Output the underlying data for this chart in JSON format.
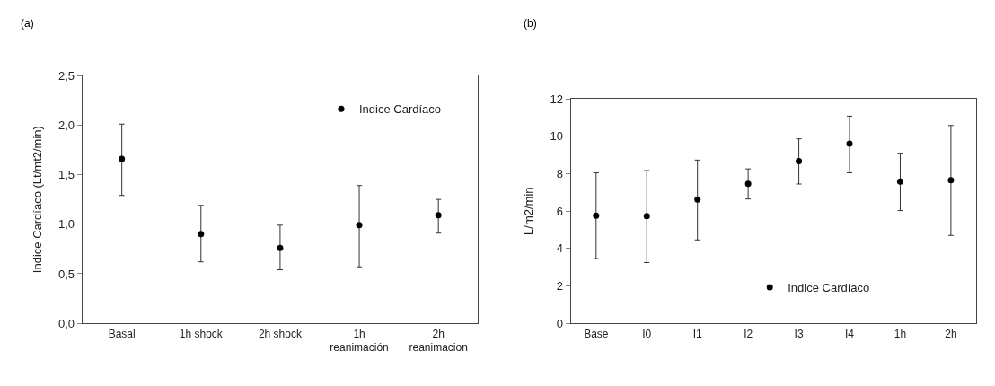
{
  "chart_data": [
    {
      "type": "scatter",
      "title": "(a)",
      "ylabel": "Indice Cardíaco (Lt/mt2/min)",
      "categories": [
        "Basal",
        "1h shock",
        "2h shock",
        "1h\nreanimación",
        "2h\nreanimacion"
      ],
      "series": [
        {
          "name": "Indice Cardíaco",
          "color": "#000000",
          "values": [
            1.66,
            0.9,
            0.76,
            0.99,
            1.09
          ],
          "errors": [
            [
              1.29,
              2.01
            ],
            [
              0.62,
              1.19
            ],
            [
              0.54,
              0.99
            ],
            [
              0.57,
              1.39
            ],
            [
              0.91,
              1.25
            ]
          ]
        }
      ],
      "ylim": [
        0,
        2.5
      ],
      "yticks": [
        {
          "value": 0,
          "label": "0,0"
        },
        {
          "value": 0.5,
          "label": "0,5"
        },
        {
          "value": 1,
          "label": "1,0"
        },
        {
          "value": 1.5,
          "label": "1,5"
        },
        {
          "value": 2,
          "label": "2,0"
        },
        {
          "value": 2.5,
          "label": "2,5"
        }
      ],
      "legend": "top right",
      "marker": "circle"
    },
    {
      "type": "scatter",
      "title": "(b)",
      "ylabel": "L/m2/min",
      "categories": [
        "Base",
        "I0",
        "I1",
        "I2",
        "I3",
        "I4",
        "1h",
        "2h"
      ],
      "series": [
        {
          "name": "Indice Cardíaco",
          "color": "#000000",
          "values": [
            5.76,
            5.73,
            6.62,
            7.46,
            8.67,
            9.61,
            7.58,
            7.65
          ],
          "errors": [
            [
              3.46,
              8.05
            ],
            [
              3.25,
              8.17
            ],
            [
              4.46,
              8.73
            ],
            [
              6.65,
              8.26
            ],
            [
              7.45,
              9.87
            ],
            [
              8.05,
              11.08
            ],
            [
              6.03,
              9.1
            ],
            [
              4.7,
              10.58
            ]
          ]
        }
      ],
      "ylim": [
        0,
        12
      ],
      "yticks": [
        0,
        2,
        4,
        6,
        8,
        10,
        12
      ],
      "legend": "bottom",
      "marker": "circle"
    }
  ]
}
